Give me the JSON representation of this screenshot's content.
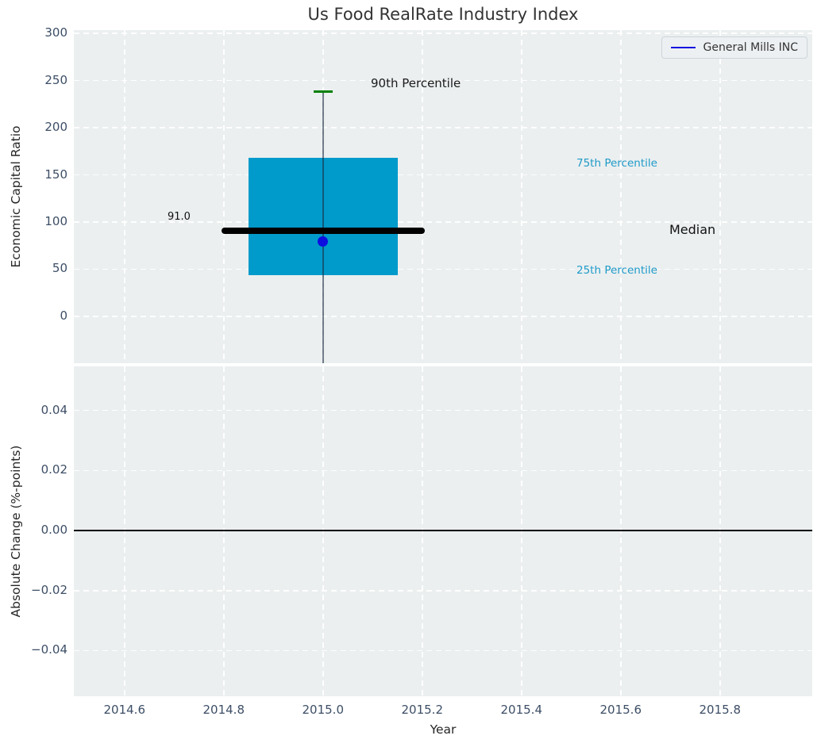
{
  "title": "Us Food RealRate Industry Index",
  "legend": {
    "label": "General Mills INC"
  },
  "annotations": {
    "p90_label": "90th Percentile",
    "p75_label": "75th Percentile",
    "p25_label": "25th Percentile",
    "median_label": "Median",
    "median_value_label": "91.0"
  },
  "colors": {
    "box_fill": "#009ACB",
    "cap_green": "#008000",
    "point_blue": "#0d0de0",
    "legend_line_blue": "#0d0de0",
    "median_line": "#000000",
    "zero_line": "#000000",
    "percentile_text": "#1e9ac8",
    "plot_background": "#EBEFF0",
    "grid": "#ffffff",
    "tick_text": "#3d4e66"
  },
  "chart_data": {
    "type": "box",
    "title": "Us Food RealRate Industry Index",
    "xlabel": "Year",
    "ylabel_top": "Economic Capital Ratio",
    "ylabel_bottom": "Absolute Change (%-points)",
    "grid": "on, white dashed",
    "legend_position": "upper right",
    "box": {
      "x": 2015.0,
      "p90": 238,
      "p75": 168,
      "median": 91.0,
      "p25": 44,
      "whisker_bottom_clipped": true,
      "box_halfwidth": 0.15,
      "median_halfwidth": 0.205,
      "cap_halfwidth": 0.019
    },
    "company_point": {
      "name": "General Mills INC",
      "x": 2015.0,
      "y": 79
    },
    "x_axis": {
      "xlim": [
        2014.498,
        2015.986
      ],
      "xticks": [
        2014.6,
        2014.8,
        2015.0,
        2015.2,
        2015.4,
        2015.6,
        2015.8
      ],
      "xtick_labels": [
        "2014.6",
        "2014.8",
        "2015.0",
        "2015.2",
        "2015.4",
        "2015.6",
        "2015.8"
      ]
    },
    "top_axis": {
      "ylim": [
        -49.6,
        303.4
      ],
      "yticks": [
        0,
        50,
        100,
        150,
        200,
        250,
        300
      ],
      "ytick_labels": [
        "0",
        "50",
        "100",
        "150",
        "200",
        "250",
        "300"
      ]
    },
    "bottom_axis": {
      "ylim": [
        -0.0552,
        0.0547
      ],
      "yticks": [
        0.04,
        0.02,
        0.0,
        -0.02,
        -0.04
      ],
      "ytick_labels": [
        "0.04",
        "0.02",
        "0.00",
        "−0.02",
        "−0.04"
      ],
      "zero_line": 0.0
    }
  }
}
